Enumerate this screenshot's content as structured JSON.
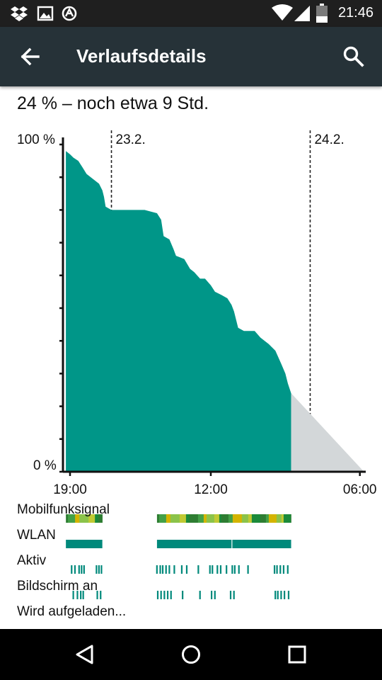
{
  "status_bar": {
    "time": "21:46",
    "icons": [
      "dropbox-icon",
      "image-icon",
      "sync-icon",
      "wifi-icon",
      "signal-icon",
      "battery-icon"
    ]
  },
  "app_bar": {
    "title": "Verlaufsdetails",
    "back_icon": "arrow-back-icon",
    "search_icon": "search-icon",
    "color": "#263238"
  },
  "summary": "24 % – noch etwa 9 Std.",
  "chart_data": {
    "type": "area",
    "ylim": [
      0,
      100
    ],
    "y_labels": [
      "100 %",
      "0 %"
    ],
    "x_tick_labels": [
      "19:00",
      "12:00",
      "06:00"
    ],
    "x_tick_hours": [
      0,
      17,
      35
    ],
    "x_range_hours": [
      -0.7,
      35.7
    ],
    "date_markers": [
      {
        "label": "23.2.",
        "hour": 5
      },
      {
        "label": "24.2.",
        "hour": 29
      }
    ],
    "series": [
      {
        "values": [
          [
            -0.5,
            98
          ],
          [
            0.0,
            97
          ],
          [
            0.4,
            96
          ],
          [
            1.0,
            95
          ],
          [
            1.5,
            93
          ],
          [
            2.0,
            91
          ],
          [
            2.5,
            90
          ],
          [
            3.0,
            89
          ],
          [
            3.5,
            88
          ],
          [
            3.9,
            86
          ],
          [
            4.1,
            84
          ],
          [
            4.3,
            81
          ],
          [
            5.0,
            80
          ],
          [
            7.0,
            80
          ],
          [
            9.0,
            80
          ],
          [
            10.5,
            79
          ],
          [
            11.0,
            77
          ],
          [
            11.3,
            72
          ],
          [
            12.0,
            71
          ],
          [
            12.5,
            68
          ],
          [
            12.8,
            66
          ],
          [
            13.8,
            65
          ],
          [
            14.5,
            62
          ],
          [
            15.0,
            61
          ],
          [
            15.7,
            59
          ],
          [
            16.3,
            59
          ],
          [
            17.0,
            57
          ],
          [
            17.5,
            55
          ],
          [
            18.3,
            54
          ],
          [
            19.0,
            53
          ],
          [
            19.5,
            51
          ],
          [
            19.8,
            49
          ],
          [
            20.3,
            44
          ],
          [
            21.0,
            43
          ],
          [
            22.3,
            43
          ],
          [
            23.0,
            41
          ],
          [
            24.0,
            39
          ],
          [
            24.8,
            37
          ],
          [
            25.5,
            33
          ],
          [
            26.0,
            30
          ],
          [
            26.3,
            27
          ],
          [
            26.7,
            24
          ]
        ]
      },
      {
        "name": "prediction",
        "values": [
          [
            26.7,
            24
          ],
          [
            35.5,
            0
          ]
        ]
      }
    ],
    "colors": {
      "history": "#009688",
      "prediction": "#d3d7d9"
    },
    "grid": false,
    "rows": [
      {
        "label": "Mobilfunksignal",
        "segments": [
          [
            -0.5,
            3.9,
            "mixed"
          ],
          [
            10.5,
            26.7,
            "mixed"
          ]
        ]
      },
      {
        "label": "WLAN",
        "segments": [
          [
            -0.5,
            3.9,
            "#00897b"
          ],
          [
            10.5,
            19.5,
            "#00897b"
          ],
          [
            19.6,
            26.7,
            "#00897b"
          ]
        ]
      },
      {
        "label": "Aktiv",
        "ticks": [
          0.1,
          0.5,
          1.0,
          1.3,
          1.6,
          3.1,
          3.4,
          3.7,
          10.4,
          10.8,
          11.1,
          11.5,
          11.9,
          12.5,
          13.4,
          14.0,
          15.4,
          16.8,
          17.1,
          17.7,
          18.1,
          18.8,
          19.5,
          19.8,
          20.3,
          21.4,
          24.6,
          24.9,
          25.3,
          25.7,
          26.2
        ]
      },
      {
        "label": "Bildschirm an",
        "ticks": [
          0.3,
          0.8,
          1.2,
          1.5,
          3.2,
          3.6,
          10.5,
          10.9,
          11.3,
          11.7,
          12.1,
          13.5,
          15.6,
          17.0,
          17.4,
          19.3,
          19.7,
          24.7,
          25.0,
          25.4,
          25.8,
          26.3
        ]
      },
      {
        "label": "Wird aufgeladen...",
        "segments": []
      }
    ]
  },
  "nav_bar": {
    "back_icon": "nav-back-icon",
    "home_icon": "nav-home-icon",
    "recents_icon": "nav-recents-icon"
  }
}
